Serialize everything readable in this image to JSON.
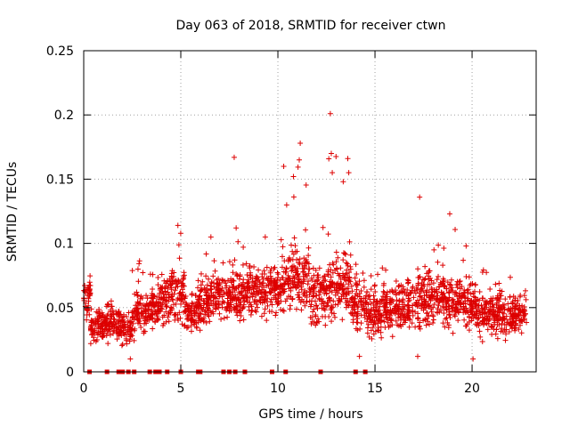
{
  "chart_data": {
    "type": "scatter",
    "title": "Day 063 of 2018, SRMTID for receiver ctwn",
    "xlabel": "GPS time / hours",
    "ylabel": "SRMTID / TECUs",
    "xlim": [
      0,
      23.3
    ],
    "ylim": [
      0,
      0.25
    ],
    "xticks": [
      0,
      5,
      10,
      15,
      20
    ],
    "xtick_labels": [
      "0",
      "5",
      "10",
      "15",
      "20"
    ],
    "yticks": [
      0,
      0.05,
      0.1,
      0.15,
      0.2,
      0.25
    ],
    "ytick_labels": [
      "0",
      "0.05",
      "0.1",
      "0.15",
      "0.2",
      "0.25"
    ],
    "grid": true,
    "marker": "plus",
    "series_color": "#dd0000",
    "baseline_markers_x": [
      0.3,
      1.2,
      1.8,
      2.0,
      2.3,
      2.6,
      3.4,
      3.7,
      3.9,
      4.3,
      5.0,
      5.9,
      6.0,
      7.2,
      7.5,
      7.8,
      8.3,
      9.7,
      10.4,
      12.2,
      14.0,
      14.5
    ],
    "bands": [
      {
        "t0": 0.0,
        "t1": 0.35,
        "center": 0.058,
        "spread": 0.012,
        "max": 0.075
      },
      {
        "t0": 0.35,
        "t1": 1.1,
        "center": 0.036,
        "spread": 0.008,
        "max": 0.05
      },
      {
        "t0": 1.1,
        "t1": 1.8,
        "center": 0.038,
        "spread": 0.009,
        "max": 0.058
      },
      {
        "t0": 1.8,
        "t1": 2.5,
        "center": 0.034,
        "spread": 0.009,
        "max": 0.052
      },
      {
        "t0": 2.5,
        "t1": 3.2,
        "center": 0.045,
        "spread": 0.012,
        "max": 0.09
      },
      {
        "t0": 3.2,
        "t1": 3.8,
        "center": 0.05,
        "spread": 0.011,
        "max": 0.085
      },
      {
        "t0": 3.8,
        "t1": 4.5,
        "center": 0.055,
        "spread": 0.012,
        "max": 0.082
      },
      {
        "t0": 4.5,
        "t1": 5.2,
        "center": 0.06,
        "spread": 0.014,
        "max": 0.114
      },
      {
        "t0": 5.2,
        "t1": 6.0,
        "center": 0.047,
        "spread": 0.011,
        "max": 0.088
      },
      {
        "t0": 6.0,
        "t1": 6.8,
        "center": 0.057,
        "spread": 0.012,
        "max": 0.105
      },
      {
        "t0": 6.8,
        "t1": 7.6,
        "center": 0.058,
        "spread": 0.012,
        "max": 0.09
      },
      {
        "t0": 7.6,
        "t1": 8.4,
        "center": 0.06,
        "spread": 0.013,
        "max": 0.112
      },
      {
        "t0": 8.4,
        "t1": 9.4,
        "center": 0.062,
        "spread": 0.012,
        "max": 0.09
      },
      {
        "t0": 9.4,
        "t1": 10.2,
        "center": 0.063,
        "spread": 0.013,
        "max": 0.105
      },
      {
        "t0": 10.2,
        "t1": 11.0,
        "center": 0.075,
        "spread": 0.018,
        "max": 0.16
      },
      {
        "t0": 11.0,
        "t1": 11.6,
        "center": 0.07,
        "spread": 0.02,
        "max": 0.178
      },
      {
        "t0": 11.6,
        "t1": 12.4,
        "center": 0.06,
        "spread": 0.014,
        "max": 0.12
      },
      {
        "t0": 12.4,
        "t1": 13.0,
        "center": 0.065,
        "spread": 0.018,
        "max": 0.17
      },
      {
        "t0": 13.0,
        "t1": 13.8,
        "center": 0.07,
        "spread": 0.018,
        "max": 0.165
      },
      {
        "t0": 13.8,
        "t1": 14.6,
        "center": 0.052,
        "spread": 0.012,
        "max": 0.09
      },
      {
        "t0": 14.6,
        "t1": 15.4,
        "center": 0.045,
        "spread": 0.012,
        "max": 0.082
      },
      {
        "t0": 15.4,
        "t1": 16.2,
        "center": 0.05,
        "spread": 0.012,
        "max": 0.09
      },
      {
        "t0": 16.2,
        "t1": 17.0,
        "center": 0.052,
        "spread": 0.013,
        "max": 0.09
      },
      {
        "t0": 17.0,
        "t1": 17.8,
        "center": 0.055,
        "spread": 0.016,
        "max": 0.135
      },
      {
        "t0": 17.8,
        "t1": 18.6,
        "center": 0.06,
        "spread": 0.014,
        "max": 0.1
      },
      {
        "t0": 18.6,
        "t1": 19.4,
        "center": 0.055,
        "spread": 0.013,
        "max": 0.123
      },
      {
        "t0": 19.4,
        "t1": 20.2,
        "center": 0.052,
        "spread": 0.013,
        "max": 0.1
      },
      {
        "t0": 20.2,
        "t1": 21.2,
        "center": 0.045,
        "spread": 0.011,
        "max": 0.08
      },
      {
        "t0": 21.2,
        "t1": 22.0,
        "center": 0.046,
        "spread": 0.011,
        "max": 0.075
      },
      {
        "t0": 22.0,
        "t1": 22.8,
        "center": 0.043,
        "spread": 0.01,
        "max": 0.065
      }
    ],
    "outliers": [
      {
        "x": 7.75,
        "y": 0.167
      },
      {
        "x": 12.7,
        "y": 0.201
      },
      {
        "x": 11.15,
        "y": 0.178
      },
      {
        "x": 11.1,
        "y": 0.165
      },
      {
        "x": 10.3,
        "y": 0.16
      },
      {
        "x": 10.8,
        "y": 0.152
      },
      {
        "x": 12.75,
        "y": 0.17
      },
      {
        "x": 13.6,
        "y": 0.166
      },
      {
        "x": 13.65,
        "y": 0.155
      },
      {
        "x": 12.8,
        "y": 0.155
      },
      {
        "x": 17.3,
        "y": 0.136
      },
      {
        "x": 18.85,
        "y": 0.123
      },
      {
        "x": 4.85,
        "y": 0.114
      },
      {
        "x": 7.85,
        "y": 0.112
      },
      {
        "x": 9.35,
        "y": 0.105
      },
      {
        "x": 6.55,
        "y": 0.105
      },
      {
        "x": 20.05,
        "y": 0.01
      },
      {
        "x": 2.4,
        "y": 0.01
      },
      {
        "x": 17.2,
        "y": 0.012
      },
      {
        "x": 14.2,
        "y": 0.012
      }
    ],
    "seed": 63
  }
}
